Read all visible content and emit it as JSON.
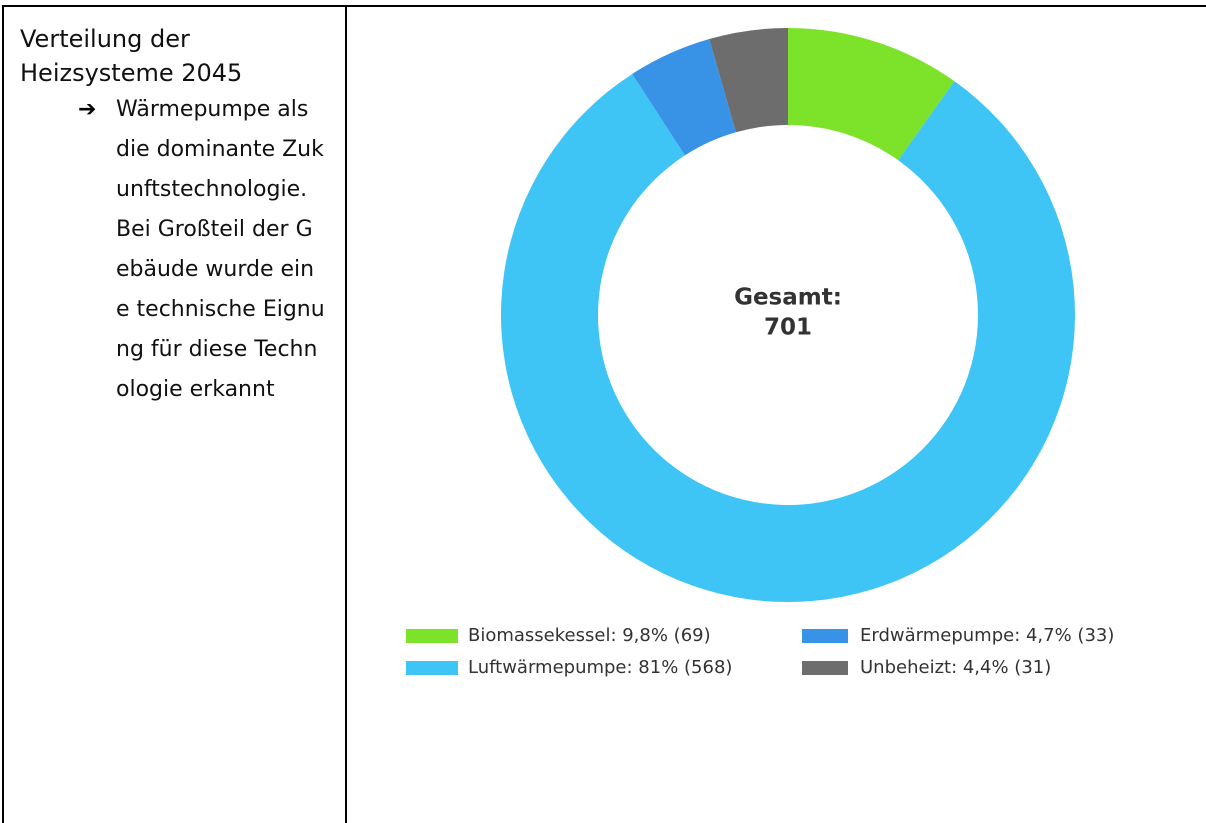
{
  "text_panel": {
    "title": "Verteilung der Heizsysteme 2045",
    "bullet": "Wärmepumpe als die dominante Zukunftstechnologie. Bei Großteil der Gebäude wurde eine technische Eignung für diese Technologie erkannt"
  },
  "chart_data": {
    "type": "donut",
    "legend_labels": [
      "Biomassekessel: 9,8% (69)",
      "Luftwärmepumpe: 81% (568)",
      "Erdwärmepumpe: 4,7% (33)",
      "Unbeheizt: 4,4% (31)"
    ],
    "values": [
      69,
      568,
      33,
      31
    ],
    "colors": [
      "#7de22a",
      "#3ec4f5",
      "#3893e6",
      "#6d6d6d"
    ],
    "center_label": "Gesamt:",
    "total": 701
  }
}
